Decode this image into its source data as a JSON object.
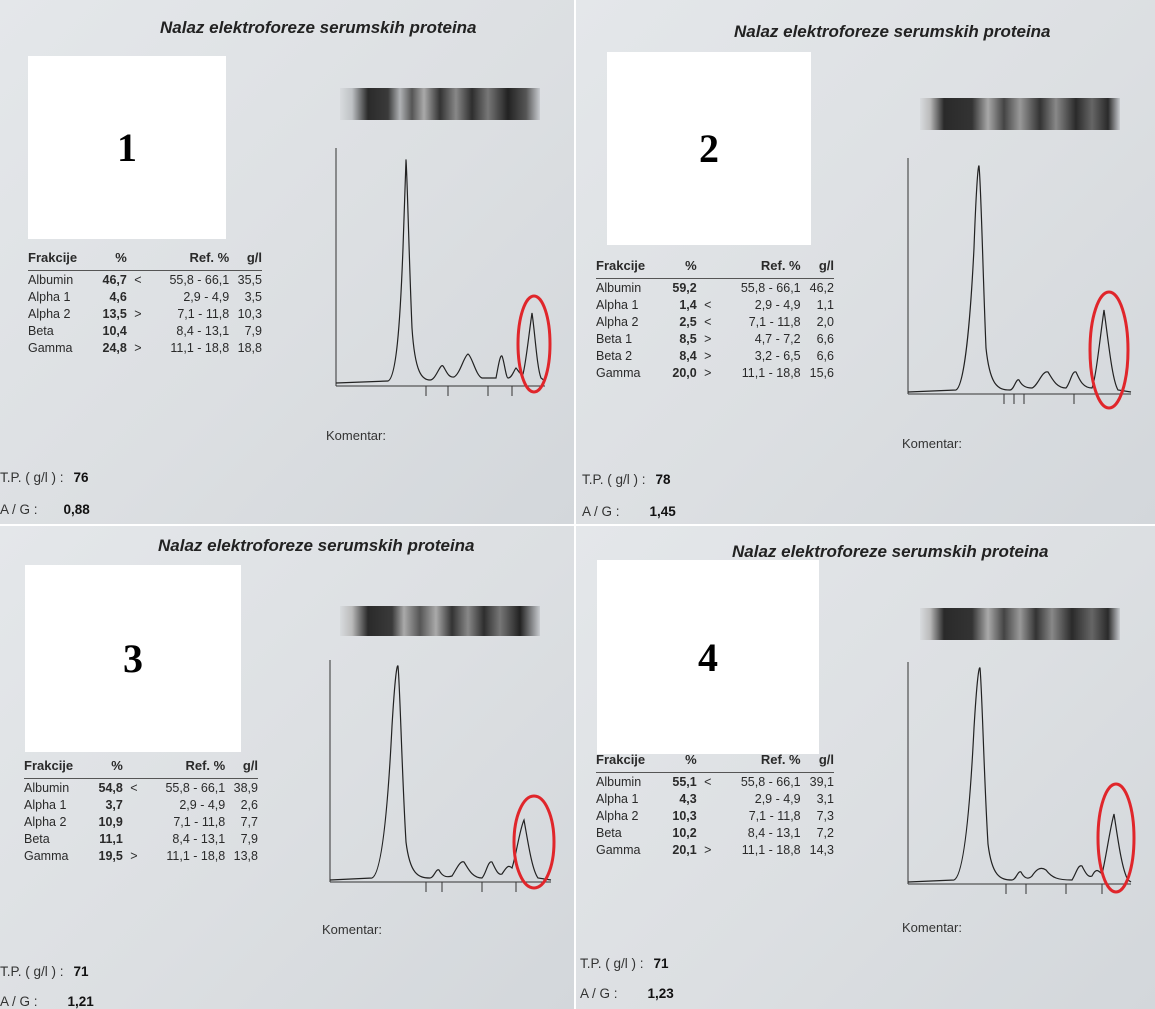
{
  "panels": [
    {
      "title": "Nalaz elektroforeze serumskih proteina",
      "number": "1",
      "headers": {
        "fraction": "Frakcije",
        "percent": "%",
        "ref": "Ref. %",
        "gl": "g/l"
      },
      "rows": [
        {
          "name": "Albumin",
          "pct": "46,7",
          "flag": "<",
          "ref": "55,8 - 66,1",
          "gl": "35,5"
        },
        {
          "name": "Alpha 1",
          "pct": "4,6",
          "flag": "",
          "ref": "2,9 - 4,9",
          "gl": "3,5"
        },
        {
          "name": "Alpha 2",
          "pct": "13,5",
          "flag": ">",
          "ref": "7,1 - 11,8",
          "gl": "10,3"
        },
        {
          "name": "Beta",
          "pct": "10,4",
          "flag": "",
          "ref": "8,4 - 13,1",
          "gl": "7,9"
        },
        {
          "name": "Gamma",
          "pct": "24,8",
          "flag": ">",
          "ref": "11,1 - 18,8",
          "gl": "18,8"
        }
      ],
      "komentar": "Komentar:",
      "tp_label": "T.P. ( g/l ) :",
      "tp_value": "76",
      "ag_label": "A / G :",
      "ag_value": "0,88",
      "circle_color": "#e0262b"
    },
    {
      "title": "Nalaz elektroforeze serumskih proteina",
      "number": "2",
      "headers": {
        "fraction": "Frakcije",
        "percent": "%",
        "ref": "Ref. %",
        "gl": "g/l"
      },
      "rows": [
        {
          "name": "Albumin",
          "pct": "59,2",
          "flag": "",
          "ref": "55,8 - 66,1",
          "gl": "46,2"
        },
        {
          "name": "Alpha 1",
          "pct": "1,4",
          "flag": "<",
          "ref": "2,9 - 4,9",
          "gl": "1,1"
        },
        {
          "name": "Alpha 2",
          "pct": "2,5",
          "flag": "<",
          "ref": "7,1 - 11,8",
          "gl": "2,0"
        },
        {
          "name": "Beta 1",
          "pct": "8,5",
          "flag": ">",
          "ref": "4,7 - 7,2",
          "gl": "6,6"
        },
        {
          "name": "Beta 2",
          "pct": "8,4",
          "flag": ">",
          "ref": "3,2 - 6,5",
          "gl": "6,6"
        },
        {
          "name": "Gamma",
          "pct": "20,0",
          "flag": ">",
          "ref": "11,1 - 18,8",
          "gl": "15,6"
        }
      ],
      "komentar": "Komentar:",
      "tp_label": "T.P. ( g/l ) :",
      "tp_value": "78",
      "ag_label": "A / G :",
      "ag_value": "1,45",
      "circle_color": "#e0262b"
    },
    {
      "title": "Nalaz elektroforeze serumskih proteina",
      "number": "3",
      "headers": {
        "fraction": "Frakcije",
        "percent": "%",
        "ref": "Ref. %",
        "gl": "g/l"
      },
      "rows": [
        {
          "name": "Albumin",
          "pct": "54,8",
          "flag": "<",
          "ref": "55,8 - 66,1",
          "gl": "38,9"
        },
        {
          "name": "Alpha 1",
          "pct": "3,7",
          "flag": "",
          "ref": "2,9 - 4,9",
          "gl": "2,6"
        },
        {
          "name": "Alpha 2",
          "pct": "10,9",
          "flag": "",
          "ref": "7,1 - 11,8",
          "gl": "7,7"
        },
        {
          "name": "Beta",
          "pct": "11,1",
          "flag": "",
          "ref": "8,4 - 13,1",
          "gl": "7,9"
        },
        {
          "name": "Gamma",
          "pct": "19,5",
          "flag": ">",
          "ref": "11,1 - 18,8",
          "gl": "13,8"
        }
      ],
      "komentar": "Komentar:",
      "tp_label": "T.P. ( g/l ) :",
      "tp_value": "71",
      "ag_label": "A / G :",
      "ag_value": "1,21",
      "circle_color": "#e0262b"
    },
    {
      "title": "Nalaz elektroforeze serumskih proteina",
      "number": "4",
      "headers": {
        "fraction": "Frakcije",
        "percent": "%",
        "ref": "Ref. %",
        "gl": "g/l"
      },
      "rows": [
        {
          "name": "Albumin",
          "pct": "55,1",
          "flag": "<",
          "ref": "55,8 - 66,1",
          "gl": "39,1"
        },
        {
          "name": "Alpha 1",
          "pct": "4,3",
          "flag": "",
          "ref": "2,9 - 4,9",
          "gl": "3,1"
        },
        {
          "name": "Alpha 2",
          "pct": "10,3",
          "flag": "",
          "ref": "7,1 - 11,8",
          "gl": "7,3"
        },
        {
          "name": "Beta",
          "pct": "10,2",
          "flag": "",
          "ref": "8,4 - 13,1",
          "gl": "7,2"
        },
        {
          "name": "Gamma",
          "pct": "20,1",
          "flag": ">",
          "ref": "11,1 - 18,8",
          "gl": "14,3"
        }
      ],
      "komentar": "Komentar:",
      "tp_label": "T.P. ( g/l ) :",
      "tp_value": "71",
      "ag_label": "A / G :",
      "ag_value": "1,23",
      "circle_color": "#e0262b"
    }
  ]
}
